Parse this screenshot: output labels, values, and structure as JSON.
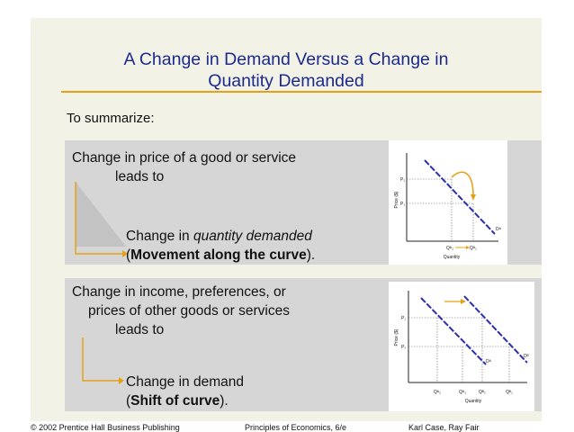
{
  "title_line1": "A Change in Demand Versus a Change in",
  "title_line2": "Quantity Demanded",
  "intro": "To summarize:",
  "panel1": {
    "line1": "Change in price of a good or service",
    "line2": "leads to",
    "result_prefix": "Change in ",
    "result_italic": "quantity demanded",
    "result_open": "(",
    "result_bold": "Movement along the curve",
    "result_close": ").",
    "graph": {
      "ylabel": "Price ($)",
      "xlabel": "Quantity",
      "p2": "P₂",
      "p1": "P₁",
      "q2": "Qᴬ₂",
      "q1": "Qᴬ₁",
      "curve": "Dᴬ"
    }
  },
  "panel2": {
    "line1": "Change in income, preferences, or",
    "line2": "prices of other goods or services",
    "line3": "leads to",
    "result_line1": "Change in demand",
    "result_open": "(",
    "result_bold": "Shift of curve",
    "result_close": ").",
    "graph": {
      "ylabel": "Price ($)",
      "xlabel": "Quantity",
      "p1": "P₁",
      "p2": "P₂",
      "qa2": "Qᴬ₂",
      "qa1": "Qᴬ₁",
      "qb2": "Qᴮ₂",
      "qb1": "Qᴮ₁",
      "curve_a": "Dᴬ",
      "curve_b": "Dᴮ"
    }
  },
  "footer": {
    "left": "© 2002 Prentice Hall Business Publishing",
    "center": "Principles of Economics, 6/e",
    "right": "Karl Case, Ray Fair"
  },
  "colors": {
    "title": "#1b2a8c",
    "rule": "#e5a116",
    "curve": "#2a2fb0",
    "arrow": "#e5a116"
  }
}
